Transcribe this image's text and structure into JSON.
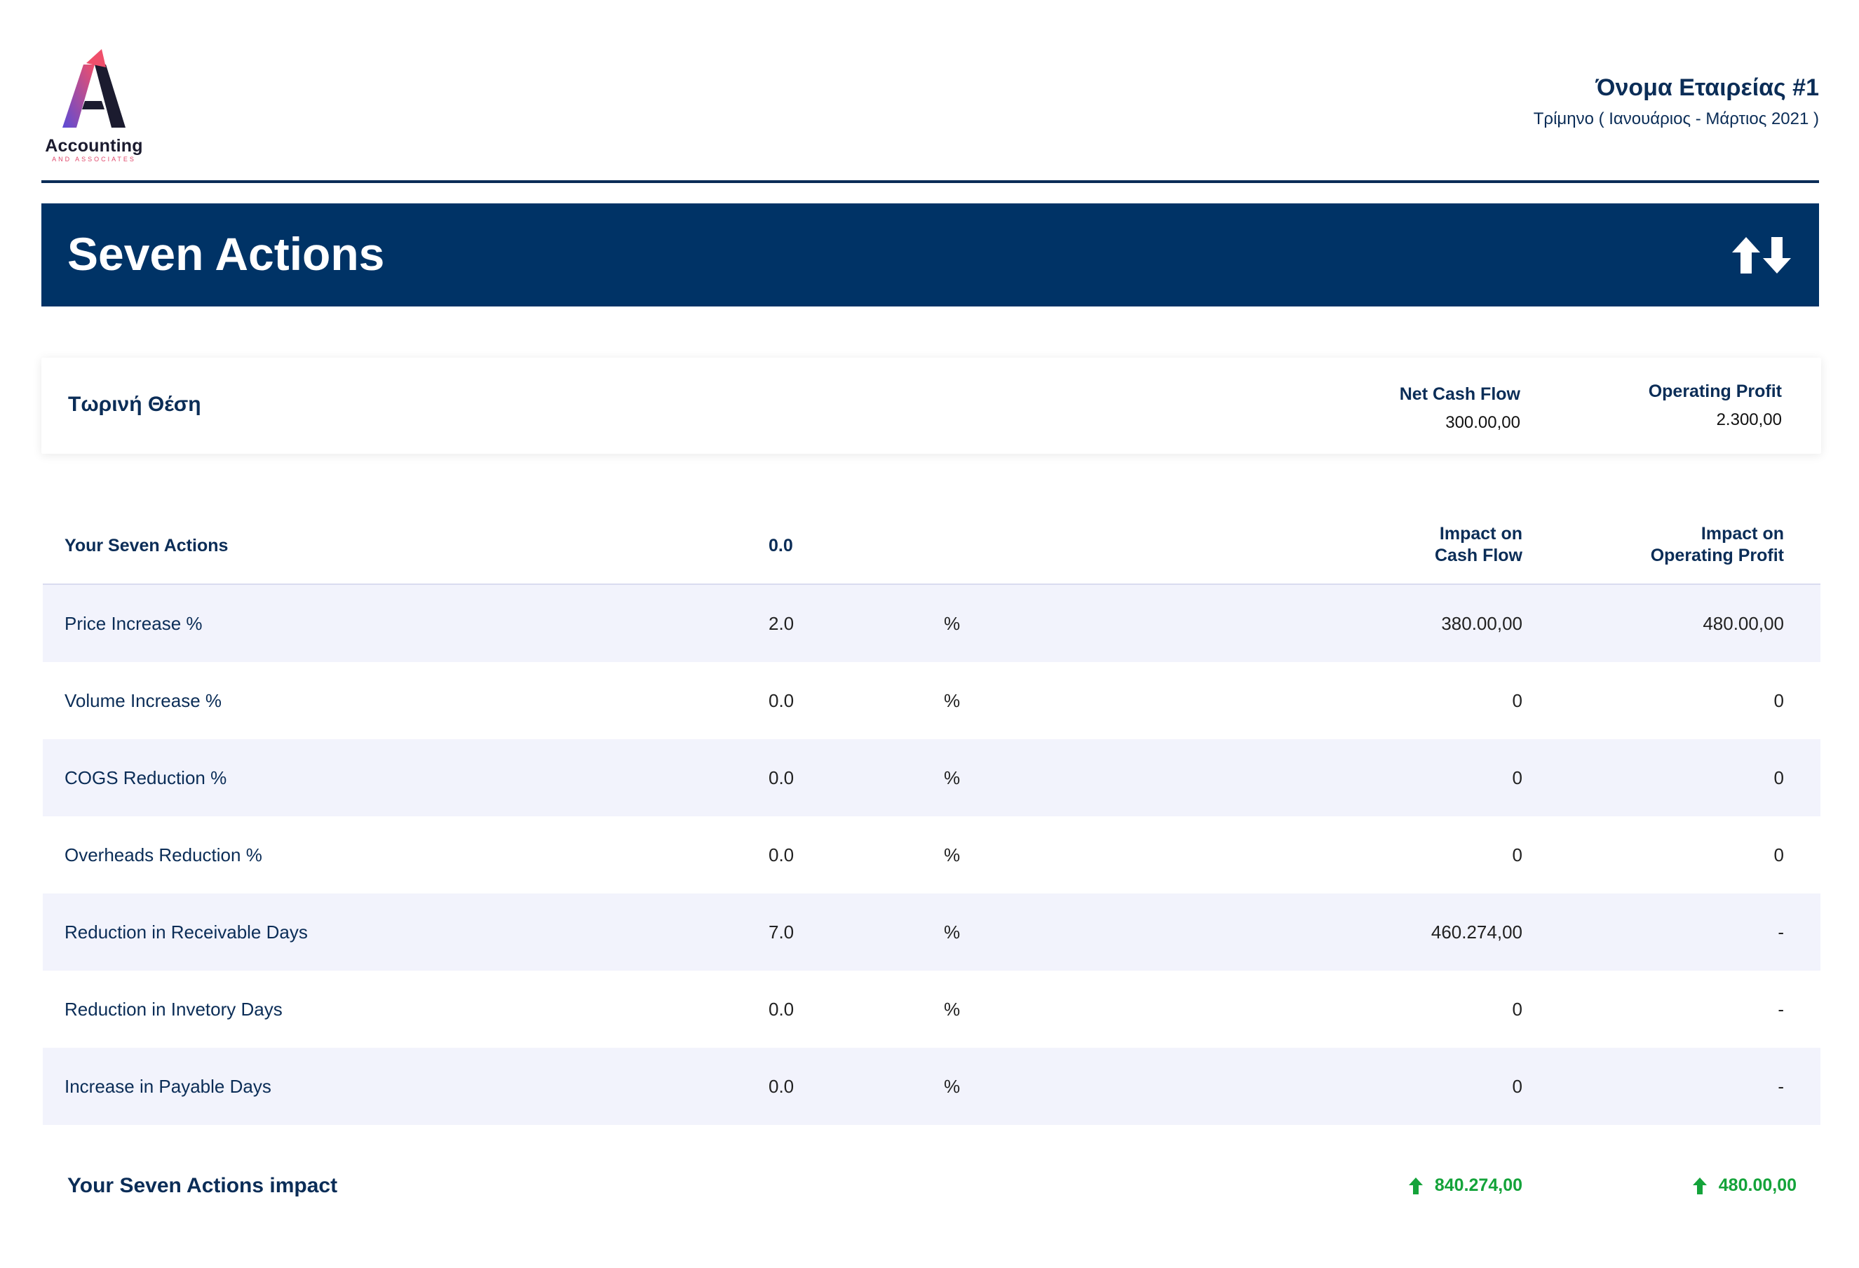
{
  "header": {
    "logo_text": "Accounting",
    "logo_subtext": "AND ASSOCIATES",
    "company_name": "Όνομα Εταιρείας #1",
    "period": "Τρίμηνο ( Ιανουάριος - Μάρτιος 2021 )"
  },
  "banner": {
    "title": "Seven Actions",
    "icon": "sort-arrows-icon"
  },
  "current_position": {
    "title": "Τωρινή Θέση",
    "net_cash_flow_label": "Net Cash Flow",
    "net_cash_flow_value": "300.00,00",
    "operating_profit_label": "Operating Profit",
    "operating_profit_value": "2.300,00"
  },
  "table": {
    "headers": {
      "actions": "Your Seven Actions",
      "value": "0.0",
      "impact_cash_line1": "Impact on",
      "impact_cash_line2": "Cash Flow",
      "impact_profit_line1": "Impact on",
      "impact_profit_line2": "Operating Profit"
    },
    "rows": [
      {
        "label": "Price Increase %",
        "value": "2.0",
        "unit": "%",
        "cash": "380.00,00",
        "profit": "480.00,00"
      },
      {
        "label": "Volume Increase %",
        "value": "0.0",
        "unit": "%",
        "cash": "0",
        "profit": "0"
      },
      {
        "label": "COGS Reduction %",
        "value": "0.0",
        "unit": "%",
        "cash": "0",
        "profit": "0"
      },
      {
        "label": "Overheads Reduction %",
        "value": "0.0",
        "unit": "%",
        "cash": "0",
        "profit": "0"
      },
      {
        "label": "Reduction in Receivable Days",
        "value": "7.0",
        "unit": "%",
        "cash": "460.274,00",
        "profit": "-"
      },
      {
        "label": "Reduction in Invetory Days",
        "value": "0.0",
        "unit": "%",
        "cash": "0",
        "profit": "-"
      },
      {
        "label": "Increase in Payable Days",
        "value": "0.0",
        "unit": "%",
        "cash": "0",
        "profit": "-"
      }
    ]
  },
  "total": {
    "label": "Your Seven Actions impact",
    "cash": "840.274,00",
    "profit": "480.00,00",
    "icon": "arrow-up-icon",
    "color": "#14a33a"
  },
  "colors": {
    "primary": "#003366",
    "row_shade": "#f2f3fc",
    "positive": "#14a33a"
  }
}
